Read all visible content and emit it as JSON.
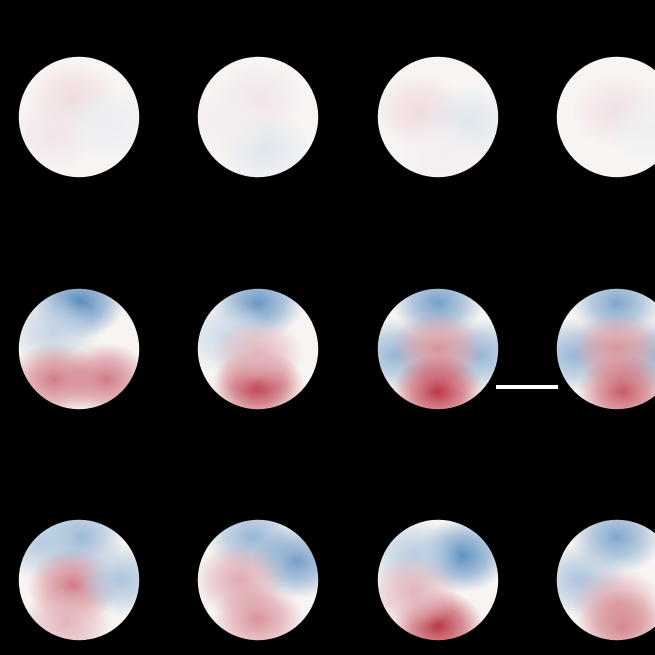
{
  "figure": {
    "background": "#000000",
    "outline_color": "#000000",
    "rows": [
      {
        "maps": [
          {
            "blobs": [
              {
                "fx": 0.45,
                "fy": 0.35,
                "v": 0.12
              },
              {
                "fx": 0.3,
                "fy": 0.65,
                "v": 0.08
              },
              {
                "fx": 0.75,
                "fy": 0.55,
                "v": -0.06
              }
            ]
          },
          {
            "blobs": [
              {
                "fx": 0.5,
                "fy": 0.35,
                "v": 0.08
              },
              {
                "fx": 0.55,
                "fy": 0.75,
                "v": -0.12
              },
              {
                "fx": 0.25,
                "fy": 0.55,
                "v": 0.05
              }
            ]
          },
          {
            "blobs": [
              {
                "fx": 0.35,
                "fy": 0.45,
                "v": 0.12
              },
              {
                "fx": 0.75,
                "fy": 0.55,
                "v": -0.12
              },
              {
                "fx": 0.55,
                "fy": 0.8,
                "v": 0.04
              }
            ]
          },
          {
            "blobs": [
              {
                "fx": 0.5,
                "fy": 0.45,
                "v": 0.1
              },
              {
                "fx": 0.8,
                "fy": 0.6,
                "v": -0.05
              }
            ]
          }
        ]
      },
      {
        "maps": [
          {
            "blobs": [
              {
                "fx": 0.5,
                "fy": 0.12,
                "v": -0.75
              },
              {
                "fx": 0.3,
                "fy": 0.35,
                "v": -0.25
              },
              {
                "fx": 0.3,
                "fy": 0.75,
                "v": 0.55
              },
              {
                "fx": 0.72,
                "fy": 0.75,
                "v": 0.55
              }
            ]
          },
          {
            "blobs": [
              {
                "fx": 0.5,
                "fy": 0.12,
                "v": -0.65
              },
              {
                "fx": 0.25,
                "fy": 0.4,
                "v": -0.2
              },
              {
                "fx": 0.5,
                "fy": 0.8,
                "v": 0.85
              },
              {
                "fx": 0.5,
                "fy": 0.55,
                "v": 0.3
              }
            ]
          },
          {
            "blobs": [
              {
                "fx": 0.5,
                "fy": 0.12,
                "v": -0.6
              },
              {
                "fx": 0.15,
                "fy": 0.55,
                "v": -0.45
              },
              {
                "fx": 0.85,
                "fy": 0.55,
                "v": -0.45
              },
              {
                "fx": 0.5,
                "fy": 0.5,
                "v": 0.45
              },
              {
                "fx": 0.5,
                "fy": 0.85,
                "v": 0.85
              }
            ]
          },
          {
            "blobs": [
              {
                "fx": 0.5,
                "fy": 0.12,
                "v": -0.55
              },
              {
                "fx": 0.15,
                "fy": 0.55,
                "v": -0.45
              },
              {
                "fx": 0.85,
                "fy": 0.55,
                "v": -0.45
              },
              {
                "fx": 0.5,
                "fy": 0.5,
                "v": 0.45
              },
              {
                "fx": 0.55,
                "fy": 0.85,
                "v": 0.7
              }
            ]
          }
        ]
      },
      {
        "maps": [
          {
            "blobs": [
              {
                "fx": 0.5,
                "fy": 0.15,
                "v": -0.45
              },
              {
                "fx": 0.2,
                "fy": 0.2,
                "v": -0.3
              },
              {
                "fx": 0.45,
                "fy": 0.55,
                "v": 0.55
              },
              {
                "fx": 0.85,
                "fy": 0.5,
                "v": -0.35
              },
              {
                "fx": 0.4,
                "fy": 0.85,
                "v": 0.3
              }
            ]
          },
          {
            "blobs": [
              {
                "fx": 0.45,
                "fy": 0.15,
                "v": -0.45
              },
              {
                "fx": 0.82,
                "fy": 0.35,
                "v": -0.6
              },
              {
                "fx": 0.35,
                "fy": 0.5,
                "v": 0.35
              },
              {
                "fx": 0.5,
                "fy": 0.82,
                "v": 0.45
              }
            ]
          },
          {
            "blobs": [
              {
                "fx": 0.7,
                "fy": 0.3,
                "v": -0.7
              },
              {
                "fx": 0.3,
                "fy": 0.3,
                "v": -0.3
              },
              {
                "fx": 0.5,
                "fy": 0.88,
                "v": 0.85
              },
              {
                "fx": 0.3,
                "fy": 0.6,
                "v": 0.3
              }
            ]
          },
          {
            "blobs": [
              {
                "fx": 0.5,
                "fy": 0.15,
                "v": -0.55
              },
              {
                "fx": 0.2,
                "fy": 0.5,
                "v": -0.35
              },
              {
                "fx": 0.5,
                "fy": 0.7,
                "v": 0.35
              },
              {
                "fx": 0.55,
                "fy": 0.88,
                "v": 0.5
              }
            ]
          }
        ]
      }
    ]
  }
}
